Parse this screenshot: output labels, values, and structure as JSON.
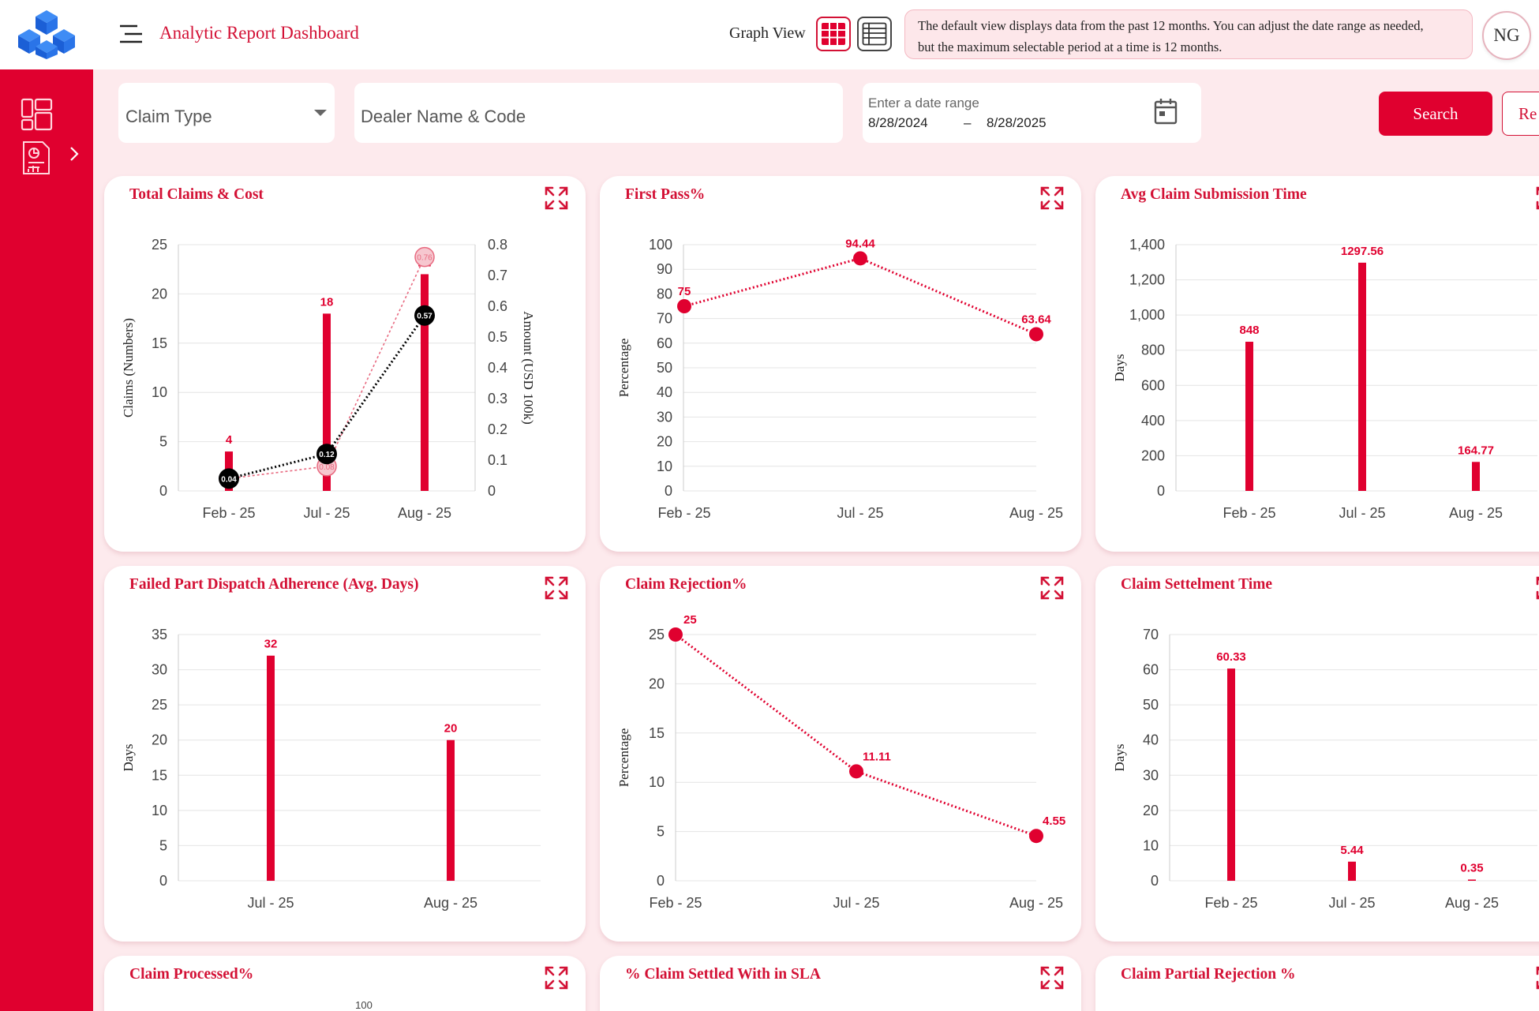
{
  "header": {
    "title": "Analytic Report Dashboard",
    "graph_view_label": "Graph View",
    "info_line1": "The default view displays data from the past 12 months. You can adjust the date range as needed,",
    "info_line2": "but the maximum selectable period at a time is 12 months.",
    "avatar_initials": "NG"
  },
  "icons": {
    "logo": "cube-logo-icon",
    "menu": "menu-icon",
    "grid_view": "grid-view-icon",
    "list_view": "list-view-icon",
    "dashboard": "dashboard-icon",
    "reports": "report-icon",
    "chevron": "chevron-right-icon",
    "calendar": "calendar-icon",
    "expand": "expand-icon"
  },
  "colors": {
    "brand": "#e0002f",
    "accent_text": "#d31135",
    "background": "#fdeaed",
    "secondary_line": "#000000"
  },
  "filters": {
    "claim_type_label": "Claim Type",
    "dealer_placeholder": "Dealer Name & Code",
    "date_range_label": "Enter a date range",
    "date_from": "8/28/2024",
    "date_separator": "–",
    "date_to": "8/28/2025",
    "search_label": "Search",
    "reset_label": "Re"
  },
  "chart_data": [
    {
      "id": "total_claims_cost",
      "title": "Total Claims & Cost",
      "type": "bar",
      "categories": [
        "Feb - 25",
        "Jul - 25",
        "Aug - 25"
      ],
      "ylabel": "Claims (Numbers)",
      "ylim": [
        0,
        25
      ],
      "yticks": [
        "25",
        "20",
        "15",
        "10",
        "5",
        "0"
      ],
      "y2label": "Amount (USD 100k)",
      "y2lim": [
        0,
        0.8
      ],
      "y2ticks": [
        "0.8",
        "0.7",
        "0.6",
        "0.5",
        "0.4",
        "0.3",
        "0.2",
        "0.1",
        "0"
      ],
      "bars": [
        4,
        18,
        22
      ],
      "bar_labels": [
        "4",
        "18",
        "22"
      ],
      "line_dark": [
        0.04,
        0.12,
        0.57
      ],
      "line_dark_labels": [
        "0.04",
        "0.12",
        "0.57"
      ],
      "line_light": [
        0.04,
        0.08,
        0.76
      ],
      "line_light_labels": [
        "0.04",
        "0.08",
        "0.76"
      ]
    },
    {
      "id": "first_pass",
      "title": "First Pass%",
      "type": "line",
      "categories": [
        "Feb - 25",
        "Jul - 25",
        "Aug - 25"
      ],
      "ylabel": "Percentage",
      "ylim": [
        0,
        100
      ],
      "yticks": [
        "100",
        "90",
        "80",
        "70",
        "60",
        "50",
        "40",
        "30",
        "20",
        "10",
        "0"
      ],
      "values": [
        75,
        94.44,
        63.64
      ],
      "labels": [
        "75",
        "94.44",
        "63.64"
      ]
    },
    {
      "id": "avg_claim_submission_time",
      "title": "Avg Claim Submission Time",
      "type": "bar",
      "categories": [
        "Feb - 25",
        "Jul - 25",
        "Aug - 25"
      ],
      "ylabel": "Days",
      "ylim": [
        0,
        1400
      ],
      "yticks": [
        "1,400",
        "1,200",
        "1,000",
        "800",
        "600",
        "400",
        "200",
        "0"
      ],
      "values": [
        848,
        1297.56,
        164.77
      ],
      "labels": [
        "848",
        "1297.56",
        "164.77"
      ]
    },
    {
      "id": "failed_part_dispatch",
      "title": "Failed Part Dispatch Adherence (Avg. Days)",
      "type": "bar",
      "categories": [
        "Jul - 25",
        "Aug - 25"
      ],
      "ylabel": "Days",
      "ylim": [
        0,
        35
      ],
      "yticks": [
        "35",
        "30",
        "25",
        "20",
        "15",
        "10",
        "5",
        "0"
      ],
      "values": [
        32,
        20
      ],
      "labels": [
        "32",
        "20"
      ]
    },
    {
      "id": "claim_rejection",
      "title": "Claim Rejection%",
      "type": "line",
      "categories": [
        "Feb - 25",
        "Jul - 25",
        "Aug - 25"
      ],
      "ylabel": "Percentage",
      "ylim": [
        0,
        25
      ],
      "yticks": [
        "25",
        "20",
        "15",
        "10",
        "5",
        "0"
      ],
      "values": [
        25,
        11.11,
        4.55
      ],
      "labels": [
        "25",
        "11.11",
        "4.55"
      ]
    },
    {
      "id": "claim_settlement_time",
      "title": "Claim Settelment Time",
      "type": "bar",
      "categories": [
        "Feb - 25",
        "Jul - 25",
        "Aug - 25"
      ],
      "ylabel": "Days",
      "ylim": [
        0,
        70
      ],
      "yticks": [
        "70",
        "60",
        "50",
        "40",
        "30",
        "20",
        "10",
        "0"
      ],
      "values": [
        60.33,
        5.44,
        0.35
      ],
      "labels": [
        "60.33",
        "5.44",
        "0.35"
      ]
    },
    {
      "id": "claim_processed",
      "title": "Claim Processed%",
      "type": "line",
      "top_tick": "100"
    },
    {
      "id": "claim_settled_sla",
      "title": "% Claim Settled With in SLA",
      "type": "line"
    },
    {
      "id": "claim_partial_rejection",
      "title": "Claim Partial Rejection %",
      "type": "line"
    }
  ]
}
